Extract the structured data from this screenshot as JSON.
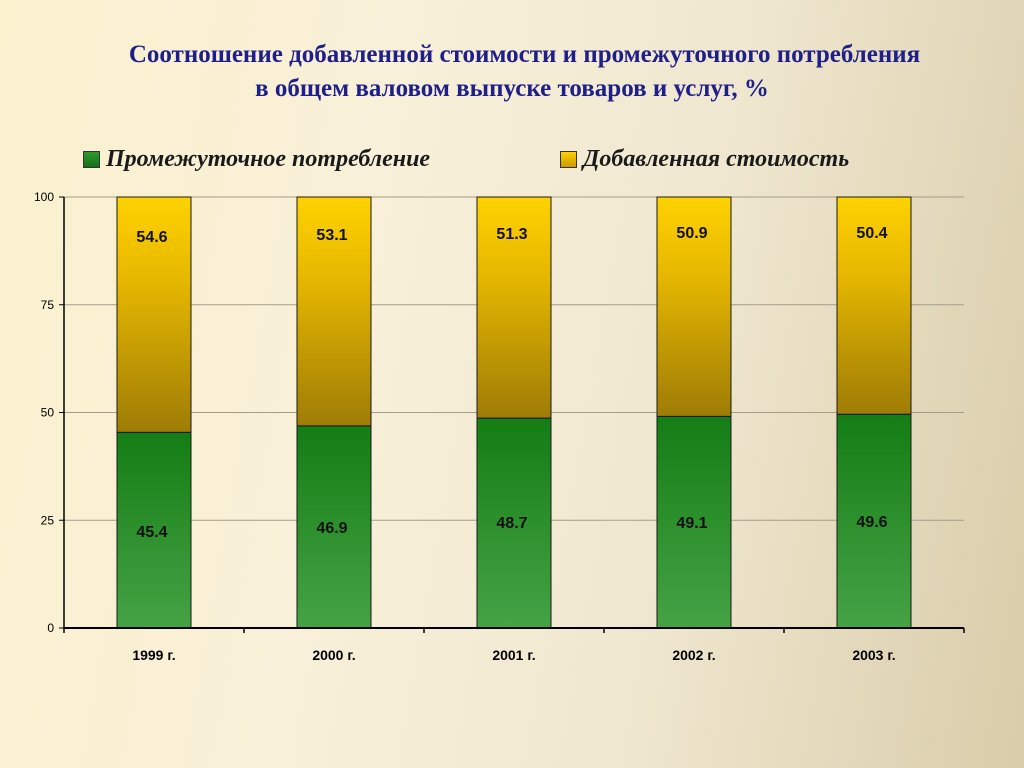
{
  "chart_data": {
    "type": "bar",
    "stacked": true,
    "title_line1": "Соотношение добавленной стоимости и промежуточного потребления",
    "title_line2": "в общем валовом выпуске товаров и услуг, %",
    "categories": [
      "1999 г.",
      "2000 г.",
      "2001 г.",
      "2002 г.",
      "2003 г."
    ],
    "series": [
      {
        "name": "Промежуточное потребление",
        "values": [
          45.4,
          46.9,
          48.7,
          49.1,
          49.6
        ],
        "color": "#1f8a1f"
      },
      {
        "name": "Добавленная стоимость",
        "values": [
          54.6,
          53.1,
          51.3,
          50.9,
          50.4
        ],
        "color": "#f2c200"
      }
    ],
    "data_labels": {
      "series0": [
        "45.4",
        "46.9",
        "48.7",
        "49.1",
        "49.6"
      ],
      "series1": [
        "54.6",
        "53.1",
        "51.3",
        "50.9",
        "50.4"
      ]
    },
    "yticks": [
      "0",
      "25",
      "50",
      "75",
      "100"
    ],
    "ylim": [
      0,
      100
    ],
    "grid": true,
    "legend_position": "top"
  }
}
